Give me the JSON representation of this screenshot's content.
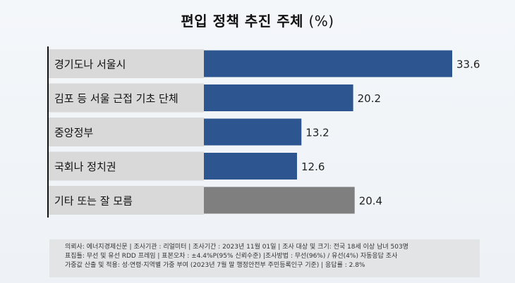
{
  "title": "편입 정책 추진 주체",
  "unit": "(%)",
  "chart_data": {
    "type": "bar",
    "orientation": "horizontal",
    "title": "편입 정책 추진 주체 (%)",
    "categories": [
      "경기도나 서울시",
      "김포 등 서울 근접 기초 단체",
      "중앙정부",
      "국회나 정치권",
      "기타 또는 잘 모름"
    ],
    "values": [
      33.6,
      20.2,
      13.2,
      12.6,
      20.4
    ],
    "value_labels": [
      "33.6",
      "20.2",
      "13.2",
      "12.6",
      "20.4"
    ],
    "colors": [
      "#2d5590",
      "#2d5590",
      "#2d5590",
      "#2d5590",
      "#7f7f7f"
    ],
    "xlim": [
      0,
      33.6
    ],
    "grid": false,
    "legend": "none"
  },
  "notes": [
    "의뢰사: 에너지경제신문  | 조사기관 : 리얼미터  | 조사기간 : 2023년 11월 01일 | 조사 대상 및 크기: 전국 18세 이상 남녀 503명",
    "표집틀: 무선 및 유선 RDD 프레임 | 표본오차 : ±4.4%P(95% 신뢰수준) |조사방법 : 무선(96%) / 유선(4%)  자동응답 조사",
    "가중값 산출 및 적용: 성·연령·지역별 가중 부여 (2023년 7월 말 행정안전부 주민등록인구  기준) | 응답률 : 2.8%"
  ]
}
